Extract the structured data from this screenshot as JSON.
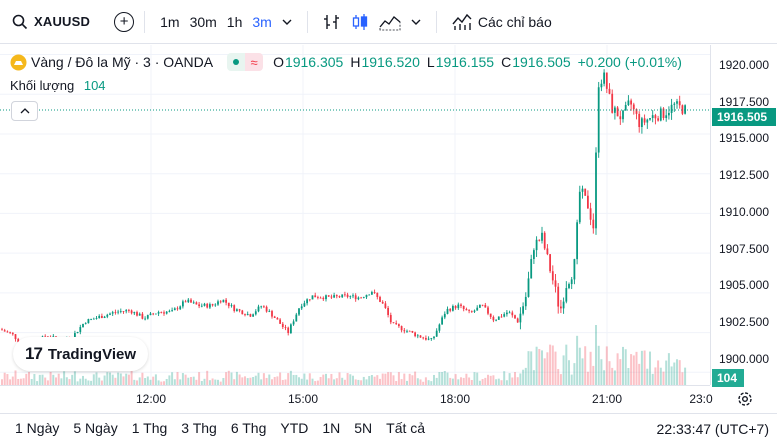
{
  "toolbar": {
    "symbol": "XAUUSD",
    "intervals": [
      "1m",
      "30m",
      "1h",
      "3m"
    ],
    "active_interval": "3m",
    "indicators_label": "Các chỉ báo"
  },
  "legend": {
    "title": "Vàng / Đô la Mỹ · 3 · OANDA",
    "open_key": "O",
    "open": "1916.305",
    "high_key": "H",
    "high": "1916.520",
    "low_key": "L",
    "low": "1916.155",
    "close_key": "C",
    "close": "1916.505",
    "change": "+0.200 (+0.01%)",
    "volume_label": "Khối lượng",
    "volume_value": "104"
  },
  "logo": {
    "text": "TradingView"
  },
  "price_scale": {
    "labels": [
      "1920.000",
      "1917.500",
      "1915.000",
      "1912.500",
      "1910.000",
      "1907.500",
      "1905.000",
      "1902.500",
      "1900.000"
    ],
    "current_price": "1916.505",
    "current_volume": "104"
  },
  "time_scale": {
    "labels": [
      "12:00",
      "15:00",
      "18:00",
      "21:00",
      "23:0"
    ]
  },
  "bottom_bar": {
    "ranges": [
      "1 Ngày",
      "5 Ngày",
      "1 Thg",
      "3 Thg",
      "6 Thg",
      "YTD",
      "1N",
      "5N",
      "Tất cả"
    ],
    "clock": "22:33:47 (UTC+7)"
  },
  "colors": {
    "up": "#089981",
    "down": "#f23645",
    "accent": "#2962ff"
  },
  "chart_data": {
    "type": "candlestick",
    "interval": "3m",
    "y_range": [
      1899.2,
      1920.6
    ],
    "x_ticks": [
      "12:00",
      "15:00",
      "18:00",
      "21:00"
    ],
    "anchors": [
      [
        0,
        1902.7
      ],
      [
        12,
        1902.4
      ],
      [
        28,
        1901.4
      ],
      [
        46,
        1902.3
      ],
      [
        60,
        1902.0
      ],
      [
        72,
        1902.2
      ],
      [
        85,
        1903.2
      ],
      [
        100,
        1903.5
      ],
      [
        116,
        1903.8
      ],
      [
        130,
        1903.9
      ],
      [
        144,
        1903.4
      ],
      [
        158,
        1903.8
      ],
      [
        172,
        1903.8
      ],
      [
        186,
        1904.5
      ],
      [
        198,
        1904.2
      ],
      [
        212,
        1904.2
      ],
      [
        222,
        1904.6
      ],
      [
        234,
        1904.0
      ],
      [
        250,
        1903.6
      ],
      [
        262,
        1904.2
      ],
      [
        274,
        1903.5
      ],
      [
        288,
        1902.5
      ],
      [
        300,
        1904.2
      ],
      [
        312,
        1904.8
      ],
      [
        330,
        1904.7
      ],
      [
        346,
        1904.8
      ],
      [
        360,
        1904.7
      ],
      [
        372,
        1905.1
      ],
      [
        384,
        1904.2
      ],
      [
        392,
        1903.0
      ],
      [
        404,
        1902.7
      ],
      [
        418,
        1902.3
      ],
      [
        432,
        1902.0
      ],
      [
        446,
        1903.9
      ],
      [
        458,
        1904.2
      ],
      [
        470,
        1903.7
      ],
      [
        482,
        1904.2
      ],
      [
        494,
        1903.3
      ],
      [
        508,
        1903.8
      ],
      [
        518,
        1903.2
      ],
      [
        526,
        1904.8
      ],
      [
        534,
        1908.0
      ],
      [
        542,
        1908.5
      ],
      [
        550,
        1906.5
      ],
      [
        556,
        1905.0
      ],
      [
        560,
        1903.8
      ],
      [
        566,
        1905.5
      ],
      [
        574,
        1906.5
      ],
      [
        580,
        1911.5
      ],
      [
        588,
        1910.5
      ],
      [
        594,
        1909.0
      ],
      [
        598,
        1918.2
      ],
      [
        604,
        1918.6
      ],
      [
        612,
        1916.6
      ],
      [
        622,
        1916.0
      ],
      [
        630,
        1917.0
      ],
      [
        640,
        1915.6
      ],
      [
        652,
        1916.1
      ],
      [
        664,
        1916.3
      ],
      [
        674,
        1916.8
      ],
      [
        686,
        1916.5
      ]
    ],
    "volume_note": "volume bars along bottom of pane",
    "last": {
      "open": 1916.305,
      "high": 1916.52,
      "low": 1916.155,
      "close": 1916.505,
      "volume": 104
    }
  }
}
